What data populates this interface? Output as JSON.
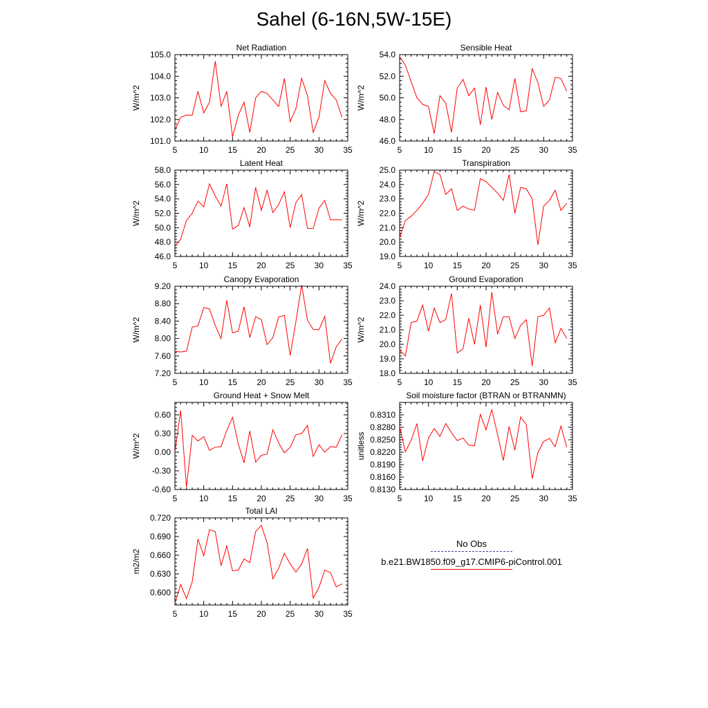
{
  "title": "Sahel (6-16N,5W-15E)",
  "legend": {
    "obs_label": "No Obs",
    "model_label": "b.e21.BW1850.f09_g17.CMIP6-piControl.001",
    "obs_color": "#3d3d9a",
    "model_color": "#ff0000"
  },
  "chart_data": [
    {
      "type": "line",
      "title": "Net Radiation",
      "ylabel": "W/m^2",
      "xlim": [
        5,
        35
      ],
      "ylim": [
        101.0,
        105.0
      ],
      "xticks": [
        "5",
        "10",
        "15",
        "20",
        "25",
        "30",
        "35"
      ],
      "yticks": [
        "101.0",
        "102.0",
        "103.0",
        "104.0",
        "105.0"
      ],
      "x": [
        5,
        6,
        7,
        8,
        9,
        10,
        11,
        12,
        13,
        14,
        15,
        16,
        17,
        18,
        19,
        20,
        21,
        22,
        23,
        24,
        25,
        26,
        27,
        28,
        29,
        30,
        31,
        32,
        33,
        34
      ],
      "series": [
        {
          "values": [
            101.5,
            102.1,
            102.2,
            102.2,
            103.3,
            102.3,
            102.8,
            104.7,
            102.6,
            103.3,
            101.2,
            102.2,
            102.8,
            101.4,
            103.0,
            103.3,
            103.2,
            102.9,
            102.6,
            103.9,
            101.9,
            102.5,
            103.9,
            103.1,
            101.4,
            102.1,
            103.8,
            103.2,
            102.9,
            102.1
          ]
        }
      ]
    },
    {
      "type": "line",
      "title": "Sensible Heat",
      "ylabel": "W/m^2",
      "xlim": [
        5,
        35
      ],
      "ylim": [
        46.0,
        54.0
      ],
      "xticks": [
        "5",
        "10",
        "15",
        "20",
        "25",
        "30",
        "35"
      ],
      "yticks": [
        "46.0",
        "48.0",
        "50.0",
        "52.0",
        "54.0"
      ],
      "x": [
        5,
        6,
        7,
        8,
        9,
        10,
        11,
        12,
        13,
        14,
        15,
        16,
        17,
        18,
        19,
        20,
        21,
        22,
        23,
        24,
        25,
        26,
        27,
        28,
        29,
        30,
        31,
        32,
        33,
        34
      ],
      "series": [
        {
          "values": [
            53.8,
            53.0,
            51.5,
            50.0,
            49.4,
            49.2,
            46.7,
            50.2,
            49.5,
            46.8,
            50.9,
            51.7,
            50.2,
            50.9,
            47.5,
            51.0,
            48.0,
            50.5,
            49.3,
            48.9,
            51.8,
            48.7,
            48.8,
            52.7,
            51.4,
            49.2,
            49.8,
            51.9,
            51.8,
            50.6
          ]
        }
      ]
    },
    {
      "type": "line",
      "title": "Latent Heat",
      "ylabel": "W/m^2",
      "xlim": [
        5,
        35
      ],
      "ylim": [
        46.0,
        58.0
      ],
      "xticks": [
        "5",
        "10",
        "15",
        "20",
        "25",
        "30",
        "35"
      ],
      "yticks": [
        "46.0",
        "48.0",
        "50.0",
        "52.0",
        "54.0",
        "56.0",
        "58.0"
      ],
      "x": [
        5,
        6,
        7,
        8,
        9,
        10,
        11,
        12,
        13,
        14,
        15,
        16,
        17,
        18,
        19,
        20,
        21,
        22,
        23,
        24,
        25,
        26,
        27,
        28,
        29,
        30,
        31,
        32,
        33,
        34
      ],
      "series": [
        {
          "values": [
            47.4,
            48.4,
            51.0,
            52.0,
            53.7,
            52.9,
            56.1,
            54.4,
            53.0,
            56.1,
            49.8,
            50.3,
            52.8,
            50.1,
            55.6,
            52.4,
            55.2,
            52.1,
            53.2,
            55.0,
            50.0,
            53.5,
            54.6,
            49.9,
            49.9,
            52.7,
            53.8,
            51.1,
            51.1,
            51.1
          ]
        }
      ]
    },
    {
      "type": "line",
      "title": "Transpiration",
      "ylabel": "W/m^2",
      "xlim": [
        5,
        35
      ],
      "ylim": [
        19.0,
        25.0
      ],
      "xticks": [
        "5",
        "10",
        "15",
        "20",
        "25",
        "30",
        "35"
      ],
      "yticks": [
        "19.0",
        "20.0",
        "21.0",
        "22.0",
        "23.0",
        "24.0",
        "25.0"
      ],
      "x": [
        5,
        6,
        7,
        8,
        9,
        10,
        11,
        12,
        13,
        14,
        15,
        16,
        17,
        18,
        19,
        20,
        21,
        22,
        23,
        24,
        25,
        26,
        27,
        28,
        29,
        30,
        31,
        32,
        33,
        34
      ],
      "series": [
        {
          "values": [
            20.3,
            21.5,
            21.8,
            22.2,
            22.7,
            23.3,
            24.9,
            24.7,
            23.3,
            23.7,
            22.2,
            22.5,
            22.3,
            22.2,
            24.4,
            24.2,
            23.8,
            23.4,
            22.9,
            24.7,
            22.0,
            23.8,
            23.7,
            23.0,
            19.8,
            22.5,
            22.9,
            23.6,
            22.2,
            22.7
          ]
        }
      ]
    },
    {
      "type": "line",
      "title": "Canopy Evaporation",
      "ylabel": "W/m^2",
      "xlim": [
        5,
        35
      ],
      "ylim": [
        7.2,
        9.2
      ],
      "xticks": [
        "5",
        "10",
        "15",
        "20",
        "25",
        "30",
        "35"
      ],
      "yticks": [
        "7.20",
        "7.60",
        "8.00",
        "8.40",
        "8.80",
        "9.20"
      ],
      "x": [
        5,
        6,
        7,
        8,
        9,
        10,
        11,
        12,
        13,
        14,
        15,
        16,
        17,
        18,
        19,
        20,
        21,
        22,
        23,
        24,
        25,
        26,
        27,
        28,
        29,
        30,
        31,
        32,
        33,
        34
      ],
      "series": [
        {
          "values": [
            7.71,
            7.69,
            7.71,
            8.26,
            8.29,
            8.71,
            8.68,
            8.3,
            8.0,
            8.88,
            8.13,
            8.17,
            8.73,
            8.02,
            8.5,
            8.43,
            7.86,
            8.02,
            8.49,
            8.53,
            7.61,
            8.39,
            9.23,
            8.42,
            8.21,
            8.2,
            8.51,
            7.43,
            7.81,
            7.99
          ]
        }
      ]
    },
    {
      "type": "line",
      "title": "Ground Evaporation",
      "ylabel": "W/m^2",
      "xlim": [
        5,
        35
      ],
      "ylim": [
        18.0,
        24.0
      ],
      "xticks": [
        "5",
        "10",
        "15",
        "20",
        "25",
        "30",
        "35"
      ],
      "yticks": [
        "18.0",
        "19.0",
        "20.0",
        "21.0",
        "22.0",
        "23.0",
        "24.0"
      ],
      "x": [
        5,
        6,
        7,
        8,
        9,
        10,
        11,
        12,
        13,
        14,
        15,
        16,
        17,
        18,
        19,
        20,
        21,
        22,
        23,
        24,
        25,
        26,
        27,
        28,
        29,
        30,
        31,
        32,
        33,
        34
      ],
      "series": [
        {
          "values": [
            19.6,
            19.2,
            21.5,
            21.6,
            22.7,
            20.9,
            22.5,
            21.5,
            21.7,
            23.5,
            19.4,
            19.7,
            21.8,
            20.0,
            22.7,
            19.8,
            23.6,
            20.7,
            21.9,
            21.9,
            20.4,
            21.3,
            21.7,
            18.5,
            21.9,
            22.0,
            22.5,
            20.1,
            21.1,
            20.4
          ]
        }
      ]
    },
    {
      "type": "line",
      "title": "Ground Heat + Snow Melt",
      "ylabel": "W/m^2",
      "xlim": [
        5,
        35
      ],
      "ylim": [
        -0.6,
        0.8
      ],
      "xticks": [
        "5",
        "10",
        "15",
        "20",
        "25",
        "30",
        "35"
      ],
      "yticks": [
        "-0.60",
        "-0.30",
        "0.00",
        "0.30",
        "0.60"
      ],
      "x": [
        5,
        6,
        7,
        8,
        9,
        10,
        11,
        12,
        13,
        14,
        15,
        16,
        17,
        18,
        19,
        20,
        21,
        22,
        23,
        24,
        25,
        26,
        27,
        28,
        29,
        30,
        31,
        32,
        33,
        34
      ],
      "series": [
        {
          "values": [
            0.0,
            0.67,
            -0.56,
            0.27,
            0.18,
            0.25,
            0.03,
            0.08,
            0.09,
            0.35,
            0.56,
            0.13,
            -0.17,
            0.34,
            -0.16,
            -0.05,
            -0.03,
            0.36,
            0.15,
            -0.01,
            0.08,
            0.28,
            0.3,
            0.43,
            -0.07,
            0.12,
            0.0,
            0.09,
            0.08,
            0.28
          ]
        }
      ]
    },
    {
      "type": "line",
      "title": "Soil moisture factor (BTRAN or BTRANMN)",
      "ylabel": "unitless",
      "xlim": [
        5,
        35
      ],
      "ylim": [
        0.813,
        0.834
      ],
      "xticks": [
        "5",
        "10",
        "15",
        "20",
        "25",
        "30",
        "35"
      ],
      "yticks": [
        "0.8130",
        "0.8160",
        "0.8190",
        "0.8220",
        "0.8250",
        "0.8280",
        "0.8310"
      ],
      "x": [
        5,
        6,
        7,
        8,
        9,
        10,
        11,
        12,
        13,
        14,
        15,
        16,
        17,
        18,
        19,
        20,
        21,
        22,
        23,
        24,
        25,
        26,
        27,
        28,
        29,
        30,
        31,
        32,
        33,
        34
      ],
      "series": [
        {
          "values": [
            0.8281,
            0.8221,
            0.8249,
            0.8289,
            0.8199,
            0.8254,
            0.8277,
            0.8258,
            0.8289,
            0.8267,
            0.8248,
            0.8254,
            0.8237,
            0.8235,
            0.8311,
            0.8274,
            0.8323,
            0.8262,
            0.82,
            0.8282,
            0.8225,
            0.8305,
            0.8286,
            0.8156,
            0.8219,
            0.8246,
            0.8253,
            0.8233,
            0.8283,
            0.8232
          ]
        }
      ]
    },
    {
      "type": "line",
      "title": "Total LAI",
      "ylabel": "m2/m2",
      "xlim": [
        5,
        35
      ],
      "ylim": [
        0.58,
        0.72
      ],
      "xticks": [
        "5",
        "10",
        "15",
        "20",
        "25",
        "30",
        "35"
      ],
      "yticks": [
        "0.600",
        "0.630",
        "0.660",
        "0.690",
        "0.720"
      ],
      "x": [
        5,
        6,
        7,
        8,
        9,
        10,
        11,
        12,
        13,
        14,
        15,
        16,
        17,
        18,
        19,
        20,
        21,
        22,
        23,
        24,
        25,
        26,
        27,
        28,
        29,
        30,
        31,
        32,
        33,
        34
      ],
      "series": [
        {
          "values": [
            0.583,
            0.613,
            0.59,
            0.617,
            0.686,
            0.659,
            0.701,
            0.698,
            0.643,
            0.675,
            0.635,
            0.636,
            0.654,
            0.648,
            0.698,
            0.708,
            0.68,
            0.622,
            0.639,
            0.663,
            0.646,
            0.633,
            0.646,
            0.671,
            0.591,
            0.608,
            0.636,
            0.632,
            0.609,
            0.614
          ]
        }
      ]
    }
  ]
}
